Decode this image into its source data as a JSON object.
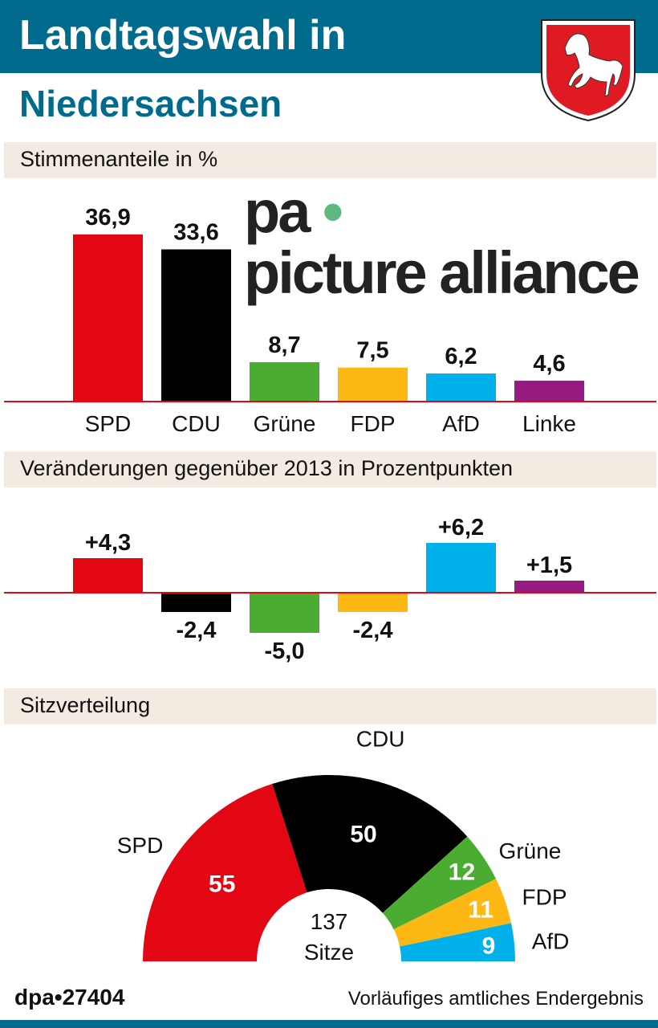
{
  "header": {
    "title_line1": "Landtagswahl in",
    "title_line2": "Niedersachsen",
    "crest": "niedersachsen-horse-crest"
  },
  "colors": {
    "SPD": "#e30613",
    "CDU": "#000000",
    "Grüne": "#4aad32",
    "FDP": "#fdb813",
    "AfD": "#00b0eb",
    "Linke": "#951b81",
    "brand": "#006b8c",
    "band": "#f3ebe2",
    "baseline": "#e30613"
  },
  "chart_data": [
    {
      "type": "bar",
      "title": "Stimmenanteile in %",
      "categories": [
        "SPD",
        "CDU",
        "Grüne",
        "FDP",
        "AfD",
        "Linke"
      ],
      "values": [
        36.9,
        33.6,
        8.7,
        7.5,
        6.2,
        4.6
      ],
      "labels": [
        "36,9",
        "33,6",
        "8,7",
        "7,5",
        "6,2",
        "4,6"
      ]
    },
    {
      "type": "bar",
      "title": "Veränderungen gegenüber 2013 in Prozentpunkten",
      "categories": [
        "SPD",
        "CDU",
        "Grüne",
        "FDP",
        "AfD",
        "Linke"
      ],
      "values": [
        4.3,
        -2.4,
        -5.0,
        -2.4,
        6.2,
        1.5
      ],
      "labels": [
        "+4,3",
        "-2,4",
        "-5,0",
        "-2,4",
        "+6,2",
        "+1,5"
      ]
    },
    {
      "type": "pie",
      "subtype": "semicircle",
      "title": "Sitzverteilung",
      "categories": [
        "SPD",
        "CDU",
        "Grüne",
        "FDP",
        "AfD"
      ],
      "values": [
        55,
        50,
        12,
        11,
        9
      ],
      "total_label": "137",
      "total_unit": "Sitze"
    }
  ],
  "watermark": {
    "left": "pa",
    "dot": "•",
    "right": "picture alliance"
  },
  "footer": {
    "source": "dpa•27404",
    "note": "Vorläufiges amtliches Endergebnis"
  }
}
